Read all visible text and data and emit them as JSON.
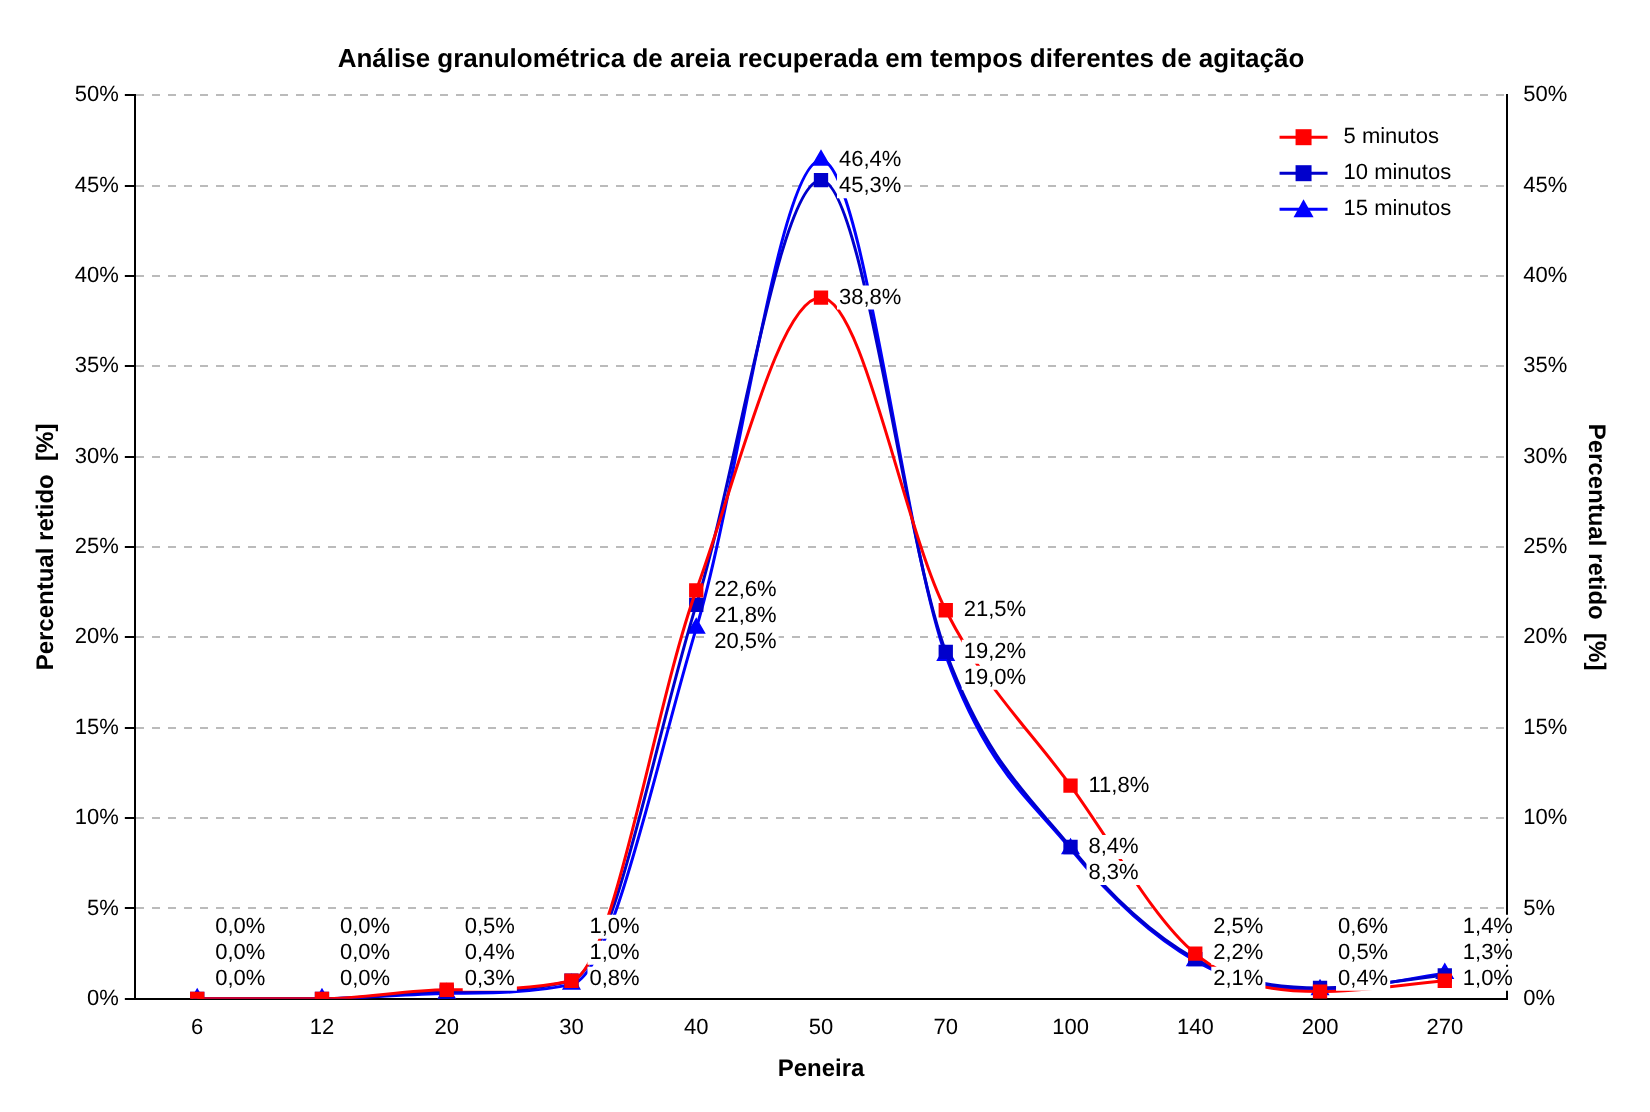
{
  "chart_data": {
    "type": "line",
    "title": "Análise granulométrica de areia recuperada em tempos diferentes de agitação",
    "xlabel": "Peneira",
    "ylabel": "Percentual retido  [%]",
    "y2label": "Percentual retido  [%]",
    "categories": [
      "6",
      "12",
      "20",
      "30",
      "40",
      "50",
      "70",
      "100",
      "140",
      "200",
      "270"
    ],
    "ylim": [
      0,
      50
    ],
    "yticks": [
      {
        "value": 0,
        "label": "0%"
      },
      {
        "value": 5,
        "label": "5%"
      },
      {
        "value": 10,
        "label": "10%"
      },
      {
        "value": 15,
        "label": "15%"
      },
      {
        "value": 20,
        "label": "20%"
      },
      {
        "value": 25,
        "label": "25%"
      },
      {
        "value": 30,
        "label": "30%"
      },
      {
        "value": 35,
        "label": "35%"
      },
      {
        "value": 40,
        "label": "40%"
      },
      {
        "value": 45,
        "label": "45%"
      },
      {
        "value": 50,
        "label": "50%"
      }
    ],
    "y2lim": [
      0,
      50
    ],
    "y2ticks": [
      {
        "value": 0,
        "label": "0%"
      },
      {
        "value": 5,
        "label": "5%"
      },
      {
        "value": 10,
        "label": "10%"
      },
      {
        "value": 15,
        "label": "15%"
      },
      {
        "value": 20,
        "label": "20%"
      },
      {
        "value": 25,
        "label": "25%"
      },
      {
        "value": 30,
        "label": "30%"
      },
      {
        "value": 35,
        "label": "35%"
      },
      {
        "value": 40,
        "label": "40%"
      },
      {
        "value": 45,
        "label": "45%"
      },
      {
        "value": 50,
        "label": "50%"
      }
    ],
    "grid": "y",
    "legend": "top right",
    "series": [
      {
        "name": "5 minutos",
        "color": "#ff0000",
        "marker": "square",
        "values": [
          0.0,
          0.0,
          0.5,
          1.0,
          22.6,
          38.8,
          21.5,
          11.8,
          2.5,
          0.4,
          1.0
        ],
        "value_labels": [
          "0,0%",
          "0,0%",
          "0,5%",
          "1,0%",
          "22,6%",
          "38,8%",
          "21,5%",
          "11,8%",
          "2,5%",
          "0,4%",
          "1,0%"
        ]
      },
      {
        "name": "10 minutos",
        "color": "#0000cc",
        "marker": "square",
        "values": [
          0.0,
          0.0,
          0.4,
          1.0,
          21.8,
          45.3,
          19.2,
          8.4,
          2.2,
          0.6,
          1.3
        ],
        "value_labels": [
          "0,0%",
          "0,0%",
          "0,4%",
          "1,0%",
          "21,8%",
          "45,3%",
          "19,2%",
          "8,4%",
          "2,2%",
          "0,6%",
          "1,3%"
        ]
      },
      {
        "name": "15 minutos",
        "color": "#0000ff",
        "marker": "triangle",
        "values": [
          0.0,
          0.0,
          0.3,
          0.8,
          20.5,
          46.4,
          19.0,
          8.3,
          2.1,
          0.5,
          1.4
        ],
        "value_labels": [
          "0,0%",
          "0,0%",
          "0,3%",
          "0,8%",
          "20,5%",
          "46,4%",
          "19,0%",
          "8,3%",
          "2,1%",
          "0,5%",
          "1,4%"
        ]
      }
    ]
  }
}
